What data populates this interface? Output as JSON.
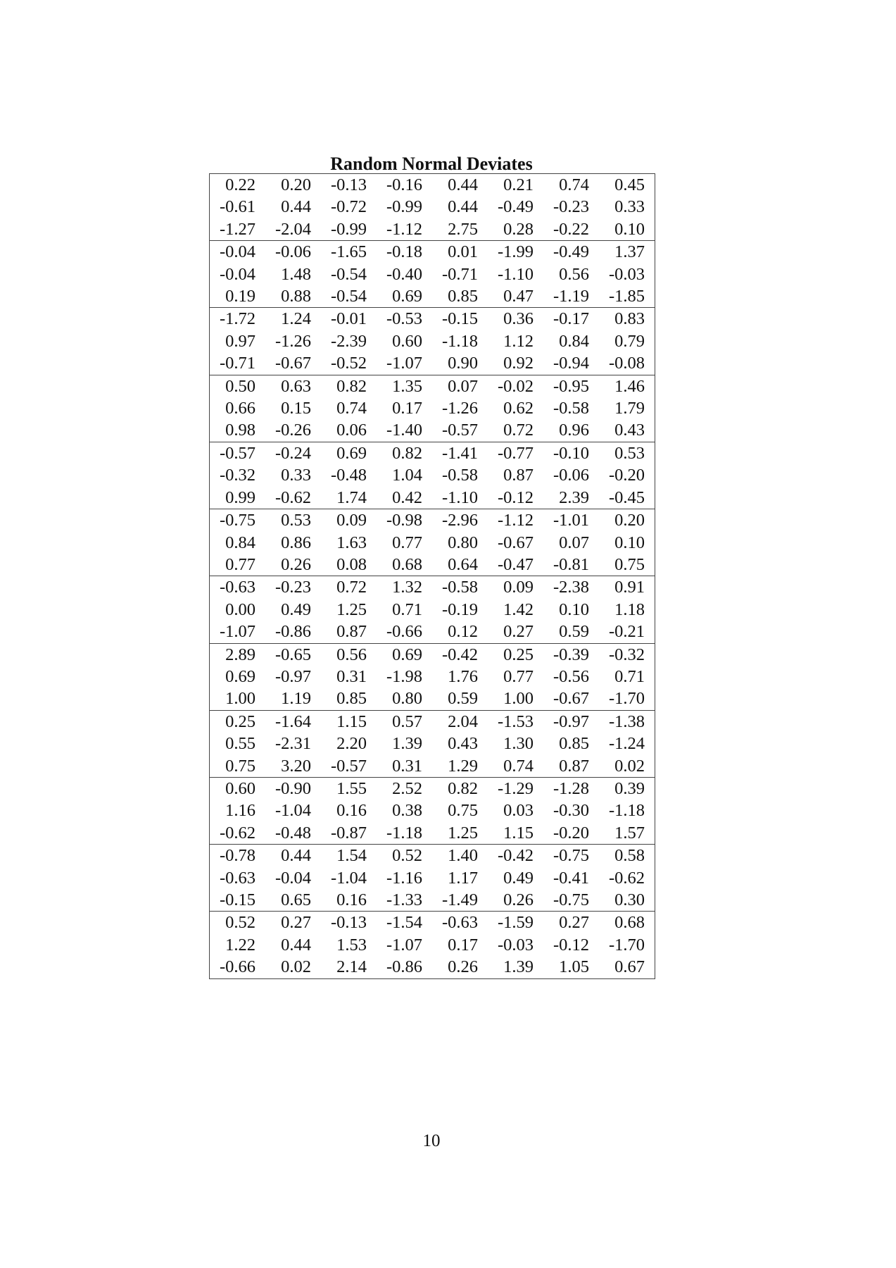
{
  "title": "Random Normal Deviates",
  "page_number": "10",
  "groups": [
    [
      [
        "0.22",
        "0.20",
        "-0.13",
        "-0.16",
        "0.44",
        "0.21",
        "0.74",
        "0.45"
      ],
      [
        "-0.61",
        "0.44",
        "-0.72",
        "-0.99",
        "0.44",
        "-0.49",
        "-0.23",
        "0.33"
      ],
      [
        "-1.27",
        "-2.04",
        "-0.99",
        "-1.12",
        "2.75",
        "0.28",
        "-0.22",
        "0.10"
      ]
    ],
    [
      [
        "-0.04",
        "-0.06",
        "-1.65",
        "-0.18",
        "0.01",
        "-1.99",
        "-0.49",
        "1.37"
      ],
      [
        "-0.04",
        "1.48",
        "-0.54",
        "-0.40",
        "-0.71",
        "-1.10",
        "0.56",
        "-0.03"
      ],
      [
        "0.19",
        "0.88",
        "-0.54",
        "0.69",
        "0.85",
        "0.47",
        "-1.19",
        "-1.85"
      ]
    ],
    [
      [
        "-1.72",
        "1.24",
        "-0.01",
        "-0.53",
        "-0.15",
        "0.36",
        "-0.17",
        "0.83"
      ],
      [
        "0.97",
        "-1.26",
        "-2.39",
        "0.60",
        "-1.18",
        "1.12",
        "0.84",
        "0.79"
      ],
      [
        "-0.71",
        "-0.67",
        "-0.52",
        "-1.07",
        "0.90",
        "0.92",
        "-0.94",
        "-0.08"
      ]
    ],
    [
      [
        "0.50",
        "0.63",
        "0.82",
        "1.35",
        "0.07",
        "-0.02",
        "-0.95",
        "1.46"
      ],
      [
        "0.66",
        "0.15",
        "0.74",
        "0.17",
        "-1.26",
        "0.62",
        "-0.58",
        "1.79"
      ],
      [
        "0.98",
        "-0.26",
        "0.06",
        "-1.40",
        "-0.57",
        "0.72",
        "0.96",
        "0.43"
      ]
    ],
    [
      [
        "-0.57",
        "-0.24",
        "0.69",
        "0.82",
        "-1.41",
        "-0.77",
        "-0.10",
        "0.53"
      ],
      [
        "-0.32",
        "0.33",
        "-0.48",
        "1.04",
        "-0.58",
        "0.87",
        "-0.06",
        "-0.20"
      ],
      [
        "0.99",
        "-0.62",
        "1.74",
        "0.42",
        "-1.10",
        "-0.12",
        "2.39",
        "-0.45"
      ]
    ],
    [
      [
        "-0.75",
        "0.53",
        "0.09",
        "-0.98",
        "-2.96",
        "-1.12",
        "-1.01",
        "0.20"
      ],
      [
        "0.84",
        "0.86",
        "1.63",
        "0.77",
        "0.80",
        "-0.67",
        "0.07",
        "0.10"
      ],
      [
        "0.77",
        "0.26",
        "0.08",
        "0.68",
        "0.64",
        "-0.47",
        "-0.81",
        "0.75"
      ]
    ],
    [
      [
        "-0.63",
        "-0.23",
        "0.72",
        "1.32",
        "-0.58",
        "0.09",
        "-2.38",
        "0.91"
      ],
      [
        "0.00",
        "0.49",
        "1.25",
        "0.71",
        "-0.19",
        "1.42",
        "0.10",
        "1.18"
      ],
      [
        "-1.07",
        "-0.86",
        "0.87",
        "-0.66",
        "0.12",
        "0.27",
        "0.59",
        "-0.21"
      ]
    ],
    [
      [
        "2.89",
        "-0.65",
        "0.56",
        "0.69",
        "-0.42",
        "0.25",
        "-0.39",
        "-0.32"
      ],
      [
        "0.69",
        "-0.97",
        "0.31",
        "-1.98",
        "1.76",
        "0.77",
        "-0.56",
        "0.71"
      ],
      [
        "1.00",
        "1.19",
        "0.85",
        "0.80",
        "0.59",
        "1.00",
        "-0.67",
        "-1.70"
      ]
    ],
    [
      [
        "0.25",
        "-1.64",
        "1.15",
        "0.57",
        "2.04",
        "-1.53",
        "-0.97",
        "-1.38"
      ],
      [
        "0.55",
        "-2.31",
        "2.20",
        "1.39",
        "0.43",
        "1.30",
        "0.85",
        "-1.24"
      ],
      [
        "0.75",
        "3.20",
        "-0.57",
        "0.31",
        "1.29",
        "0.74",
        "0.87",
        "0.02"
      ]
    ],
    [
      [
        "0.60",
        "-0.90",
        "1.55",
        "2.52",
        "0.82",
        "-1.29",
        "-1.28",
        "0.39"
      ],
      [
        "1.16",
        "-1.04",
        "0.16",
        "0.38",
        "0.75",
        "0.03",
        "-0.30",
        "-1.18"
      ],
      [
        "-0.62",
        "-0.48",
        "-0.87",
        "-1.18",
        "1.25",
        "1.15",
        "-0.20",
        "1.57"
      ]
    ],
    [
      [
        "-0.78",
        "0.44",
        "1.54",
        "0.52",
        "1.40",
        "-0.42",
        "-0.75",
        "0.58"
      ],
      [
        "-0.63",
        "-0.04",
        "-1.04",
        "-1.16",
        "1.17",
        "0.49",
        "-0.41",
        "-0.62"
      ],
      [
        "-0.15",
        "0.65",
        "0.16",
        "-1.33",
        "-1.49",
        "0.26",
        "-0.75",
        "0.30"
      ]
    ],
    [
      [
        "0.52",
        "0.27",
        "-0.13",
        "-1.54",
        "-0.63",
        "-1.59",
        "0.27",
        "0.68"
      ],
      [
        "1.22",
        "0.44",
        "1.53",
        "-1.07",
        "0.17",
        "-0.03",
        "-0.12",
        "-1.70"
      ],
      [
        "-0.66",
        "0.02",
        "2.14",
        "-0.86",
        "0.26",
        "1.39",
        "1.05",
        "0.67"
      ]
    ]
  ]
}
